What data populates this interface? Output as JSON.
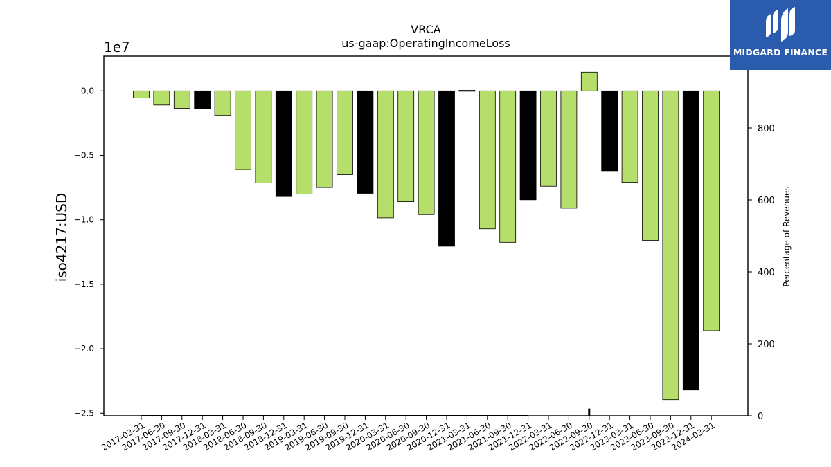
{
  "brand": {
    "name": "MIDGARD FINANCE",
    "icon": "midgard-logo-icon",
    "color": "#2b5bac"
  },
  "chart_data": {
    "type": "bar",
    "title": "VRCA",
    "subtitle": "us-gaap:OperatingIncomeLoss",
    "ylabel": "iso4217:USD",
    "y_scale_label": "1e7",
    "y2label": "Percentage of Revenues",
    "ylim": [
      -25200000,
      2700000
    ],
    "y2lim": [
      0,
      1000
    ],
    "yticks": [
      0,
      -5000000,
      -10000000,
      -15000000,
      -20000000,
      -25000000
    ],
    "ytick_labels": [
      "0.0",
      "−0.5",
      "−1.0",
      "−1.5",
      "−2.0",
      "−2.5"
    ],
    "y2ticks": [
      0,
      200,
      400,
      600,
      800
    ],
    "y2tick_labels": [
      "0",
      "200",
      "400",
      "600",
      "800"
    ],
    "grid": false,
    "colors": {
      "quarter": "#b5de6a",
      "annual": "#000000",
      "edge": "#000000"
    },
    "categories": [
      "2017-03-31",
      "2017-06-30",
      "2017-09-30",
      "2017-12-31",
      "2018-03-31",
      "2018-06-30",
      "2018-09-30",
      "2018-12-31",
      "2019-03-31",
      "2019-06-30",
      "2019-09-30",
      "2019-12-31",
      "2020-03-31",
      "2020-06-30",
      "2020-09-30",
      "2020-12-31",
      "2021-03-31",
      "2021-06-30",
      "2021-09-30",
      "2021-12-31",
      "2022-03-31",
      "2022-06-30",
      "2022-09-30",
      "2022-12-31",
      "2023-03-31",
      "2023-06-30",
      "2023-09-30",
      "2023-12-31",
      "2024-03-31"
    ],
    "values": [
      -550000,
      -1100000,
      -1350000,
      -1400000,
      -1900000,
      -6100000,
      -7150000,
      -8200000,
      -8000000,
      -7500000,
      -6500000,
      -7950000,
      -9850000,
      -8600000,
      -9600000,
      -12050000,
      50000,
      -10700000,
      -11750000,
      -8450000,
      -7400000,
      -9100000,
      1450000,
      -6200000,
      -7100000,
      -11600000,
      -23950000,
      -23200000,
      -18600000
    ],
    "period_types": [
      "Q",
      "Q",
      "Q",
      "FY",
      "Q",
      "Q",
      "Q",
      "FY",
      "Q",
      "Q",
      "Q",
      "FY",
      "Q",
      "Q",
      "Q",
      "FY",
      "Q",
      "Q",
      "Q",
      "FY",
      "Q",
      "Q",
      "Q",
      "FY",
      "Q",
      "Q",
      "Q",
      "FY",
      "Q"
    ],
    "pct_of_revenues": [
      0,
      0,
      0,
      0,
      0,
      0,
      0,
      0,
      0,
      0,
      0,
      0,
      0,
      0,
      0,
      0,
      0,
      0,
      0,
      0,
      0,
      0,
      20,
      0,
      0,
      0,
      0,
      0,
      0
    ]
  }
}
